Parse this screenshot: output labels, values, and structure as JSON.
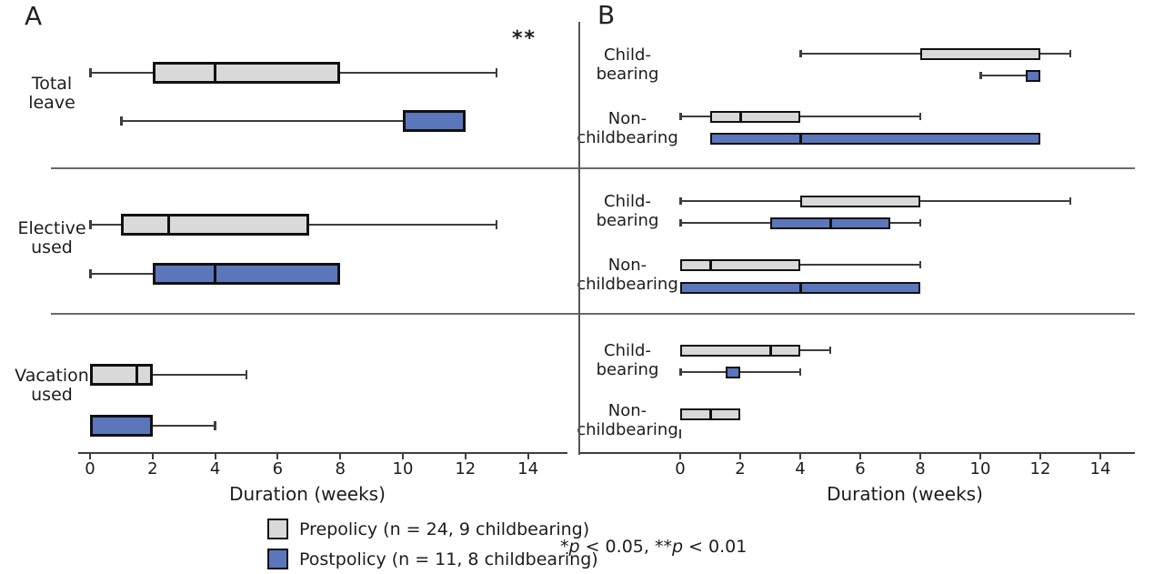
{
  "figure": {
    "background": "#ffffff",
    "footnote_text": "*p < 0.05, **p < 0.01",
    "footnote_segments": [
      {
        "text": "*"
      },
      {
        "text": "p",
        "italic": true
      },
      {
        "text": " < 0.05, "
      },
      {
        "text": "**"
      },
      {
        "text": "p",
        "italic": true
      },
      {
        "text": " < 0.01"
      }
    ]
  },
  "legend": {
    "items": [
      {
        "series": "prepolicy",
        "label": "Prepolicy (n = 24, 9 childbearing)",
        "color": "#d9d9d9"
      },
      {
        "series": "postpolicy",
        "label": "Postpolicy (n = 11, 8 childbearing)",
        "color": "#5b76ba"
      }
    ]
  },
  "chart_data": {
    "type": "boxplot",
    "orientation": "horizontal",
    "x_label": "Duration (weeks)",
    "unit": "weeks",
    "x_ticks": [
      0,
      2,
      4,
      6,
      8,
      10,
      12,
      14
    ],
    "x_range": [
      0,
      14
    ],
    "grid": false,
    "series_colors": {
      "prepolicy": "#d9d9d9",
      "postpolicy": "#5b76ba"
    },
    "panels": [
      {
        "label": "A",
        "sections": [
          {
            "row_label": "Total leave",
            "annotation": "**",
            "boxes": [
              {
                "series": "prepolicy",
                "min": 0,
                "q1": 2,
                "median": 4,
                "q3": 8,
                "max": 13
              },
              {
                "series": "postpolicy",
                "min": 1,
                "q1": 10,
                "median": 12,
                "q3": 12,
                "max": 12
              }
            ]
          },
          {
            "row_label": "Elective used",
            "boxes": [
              {
                "series": "prepolicy",
                "min": 0,
                "q1": 1,
                "median": 2.5,
                "q3": 7,
                "max": 13
              },
              {
                "series": "postpolicy",
                "min": 0,
                "q1": 2,
                "median": 4,
                "q3": 8,
                "max": 8
              }
            ]
          },
          {
            "row_label": "Vacation used",
            "boxes": [
              {
                "series": "prepolicy",
                "min": 0,
                "q1": 0,
                "median": 1.5,
                "q3": 2,
                "max": 5
              },
              {
                "series": "postpolicy",
                "min": 0,
                "q1": 0,
                "median": 2,
                "q3": 2,
                "max": 4
              }
            ]
          }
        ]
      },
      {
        "label": "B",
        "sections": [
          {
            "groups": [
              {
                "label": "Child-bearing",
                "boxes": [
                  {
                    "series": "prepolicy",
                    "min": 4,
                    "q1": 8,
                    "median": 12,
                    "q3": 12,
                    "max": 13
                  },
                  {
                    "series": "postpolicy",
                    "min": 10,
                    "q1": 11.5,
                    "median": 12,
                    "q3": 12,
                    "max": 12
                  }
                ]
              },
              {
                "label": "Non-childbearing",
                "boxes": [
                  {
                    "series": "prepolicy",
                    "min": 0,
                    "q1": 1,
                    "median": 2,
                    "q3": 4,
                    "max": 8
                  },
                  {
                    "series": "postpolicy",
                    "min": 1,
                    "q1": 1,
                    "median": 4,
                    "q3": 12,
                    "max": 12
                  }
                ]
              }
            ]
          },
          {
            "groups": [
              {
                "label": "Child-bearing",
                "boxes": [
                  {
                    "series": "prepolicy",
                    "min": 0,
                    "q1": 4,
                    "median": 8,
                    "q3": 8,
                    "max": 13
                  },
                  {
                    "series": "postpolicy",
                    "min": 0,
                    "q1": 3,
                    "median": 5,
                    "q3": 7,
                    "max": 8
                  }
                ]
              },
              {
                "label": "Non-childbearing",
                "boxes": [
                  {
                    "series": "prepolicy",
                    "min": 0,
                    "q1": 0,
                    "median": 1,
                    "q3": 4,
                    "max": 8
                  },
                  {
                    "series": "postpolicy",
                    "min": 0,
                    "q1": 0,
                    "median": 4,
                    "q3": 8,
                    "max": 8
                  }
                ]
              }
            ]
          },
          {
            "groups": [
              {
                "label": "Child-bearing",
                "boxes": [
                  {
                    "series": "prepolicy",
                    "min": 0,
                    "q1": 0,
                    "median": 3,
                    "q3": 4,
                    "max": 5
                  },
                  {
                    "series": "postpolicy",
                    "min": 0,
                    "q1": 1.5,
                    "median": 2,
                    "q3": 2,
                    "max": 4
                  }
                ]
              },
              {
                "label": "Non-childbearing",
                "boxes": [
                  {
                    "series": "prepolicy",
                    "min": 0,
                    "q1": 0,
                    "median": 1,
                    "q3": 2,
                    "max": 2
                  },
                  {
                    "series": "postpolicy",
                    "min": 0,
                    "q1": 0,
                    "median": 0,
                    "q3": 0,
                    "max": 0
                  }
                ]
              }
            ]
          }
        ]
      }
    ]
  }
}
